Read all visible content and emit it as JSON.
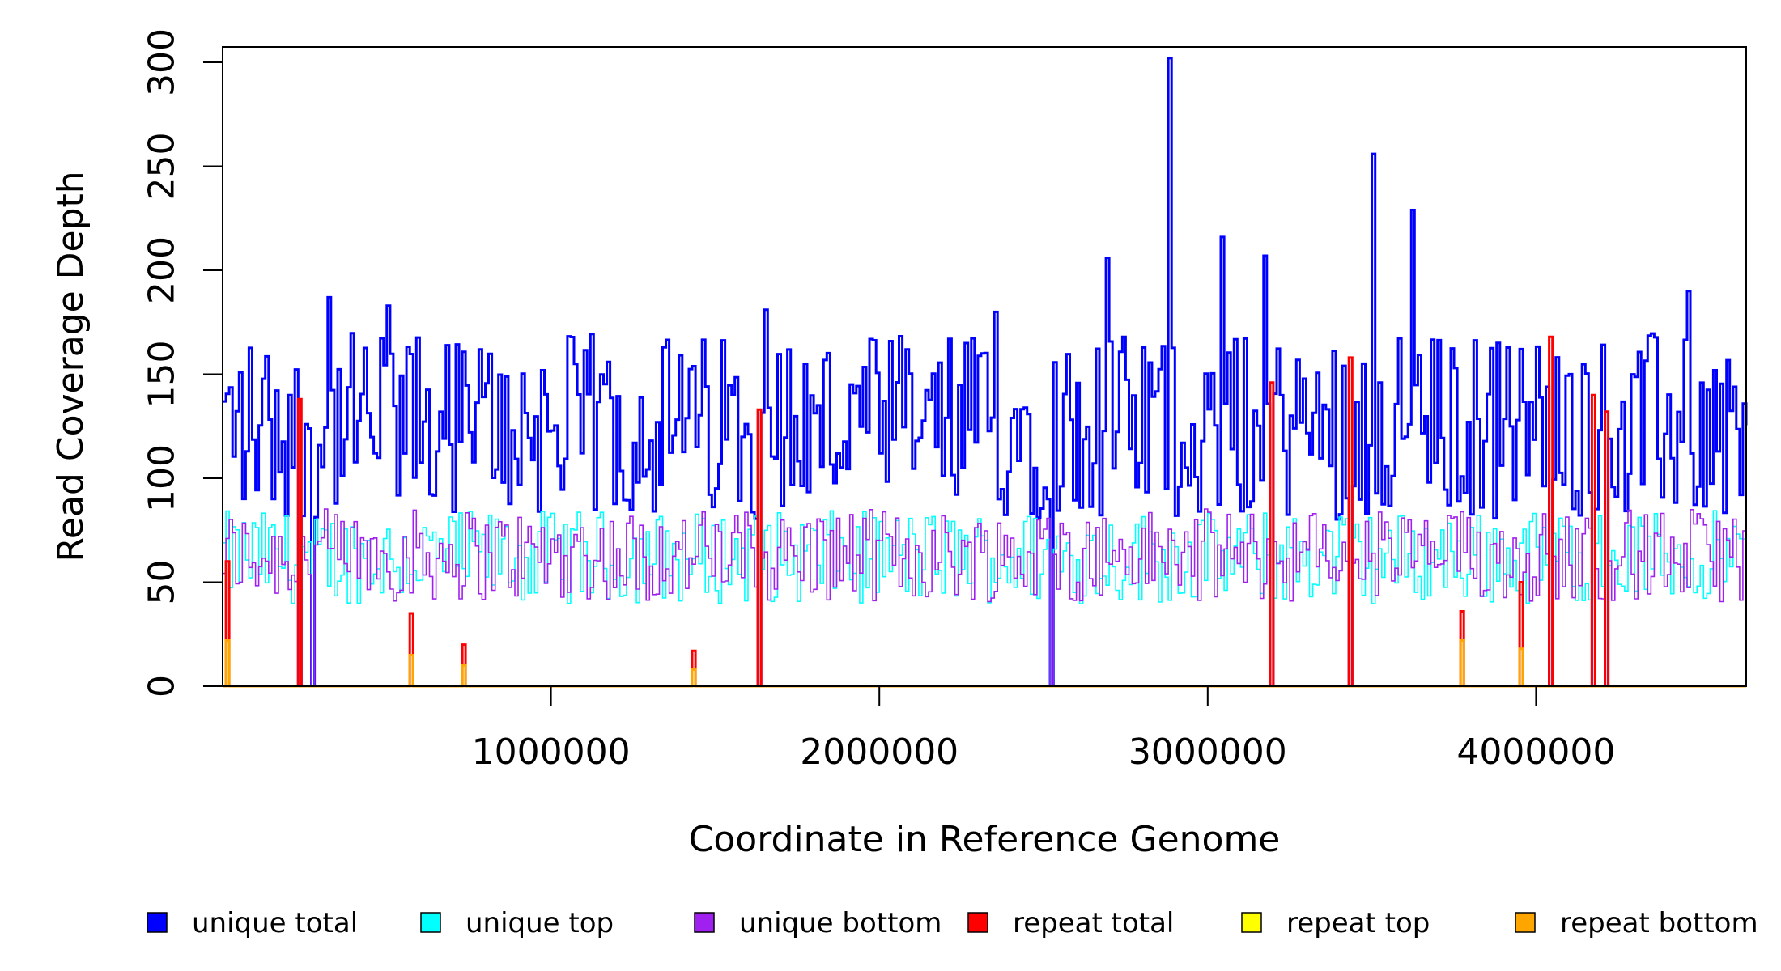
{
  "chart_data": {
    "type": "line",
    "title": "",
    "xlabel": "Coordinate in Reference Genome",
    "ylabel": "Read Coverage Depth",
    "xlim": [
      0,
      4640000
    ],
    "ylim": [
      0,
      300
    ],
    "x_ticks": [
      1000000,
      2000000,
      3000000,
      4000000
    ],
    "x_tick_labels": [
      "1000000",
      "2000000",
      "3000000",
      "4000000"
    ],
    "y_ticks": [
      0,
      50,
      100,
      150,
      200,
      250,
      300
    ],
    "y_tick_labels": [
      "0",
      "50",
      "100",
      "150",
      "200",
      "250",
      "300"
    ],
    "grid": false,
    "legend_position": "bottom",
    "bin_size": 10000,
    "series": [
      {
        "name": "unique total",
        "color": "#0000FF",
        "baseline": 125,
        "noise": 30
      },
      {
        "name": "unique top",
        "color": "#00FFFF",
        "baseline": 62,
        "noise": 14
      },
      {
        "name": "unique bottom",
        "color": "#A020F0",
        "baseline": 63,
        "noise": 14
      },
      {
        "name": "repeat total",
        "color": "#FF0000",
        "baseline": 0,
        "noise": 0
      },
      {
        "name": "repeat top",
        "color": "#FFFF00",
        "baseline": 0,
        "noise": 0
      },
      {
        "name": "repeat bottom",
        "color": "#FFA500",
        "baseline": 0,
        "noise": 0
      }
    ],
    "unique_total_peaks": [
      {
        "x": 2880000,
        "y": 302
      },
      {
        "x": 3500000,
        "y": 256
      },
      {
        "x": 3620000,
        "y": 229
      },
      {
        "x": 3040000,
        "y": 216
      },
      {
        "x": 3170000,
        "y": 207
      },
      {
        "x": 2690000,
        "y": 206
      },
      {
        "x": 495000,
        "y": 183
      },
      {
        "x": 4460000,
        "y": 190
      },
      {
        "x": 320000,
        "y": 187
      },
      {
        "x": 2350000,
        "y": 180
      },
      {
        "x": 1650000,
        "y": 181
      }
    ],
    "coverage_gaps": [
      225000,
      265000,
      1630000,
      2520000,
      3190000,
      3430000,
      4040000,
      4170000,
      4210000
    ],
    "repeat_regions": [
      {
        "x": 10000,
        "total": 60,
        "bottom": 22
      },
      {
        "x": 225000,
        "total": 138,
        "bottom": 0
      },
      {
        "x": 570000,
        "total": 35,
        "bottom": 15
      },
      {
        "x": 725000,
        "total": 20,
        "bottom": 10
      },
      {
        "x": 1430000,
        "total": 17,
        "bottom": 8
      },
      {
        "x": 1630000,
        "total": 133,
        "bottom": 0
      },
      {
        "x": 3190000,
        "total": 146,
        "bottom": 0
      },
      {
        "x": 3430000,
        "total": 158,
        "bottom": 0
      },
      {
        "x": 3770000,
        "total": 36,
        "bottom": 22
      },
      {
        "x": 3950000,
        "total": 50,
        "bottom": 18
      },
      {
        "x": 4040000,
        "total": 168,
        "bottom": 0
      },
      {
        "x": 4170000,
        "total": 140,
        "bottom": 0
      },
      {
        "x": 4210000,
        "total": 132,
        "bottom": 0
      }
    ]
  }
}
